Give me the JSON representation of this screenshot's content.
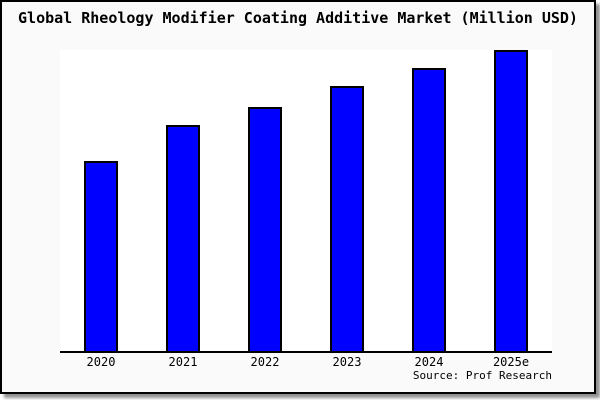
{
  "title": "Global Rheology Modifier Coating Additive Market (Million USD)",
  "source_label": "Source: Prof Research",
  "colors": {
    "bar_fill": "#0000FF",
    "bar_border": "#000000",
    "card_background": "#FAFAFA",
    "plot_background": "#FFFFFF",
    "axis": "#000000",
    "text": "#000000",
    "card_border": "#000000",
    "shadow": "#8F8F8F"
  },
  "chart_data": {
    "type": "bar",
    "title": "Global Rheology Modifier Coating Additive Market (Million USD)",
    "unit": "Million USD",
    "categories": [
      "2020",
      "2021",
      "2022",
      "2023",
      "2024",
      "2025e"
    ],
    "values": [
      63,
      75,
      81,
      88,
      94,
      100
    ],
    "value_scale": "relative index estimated from bar heights; tallest bar (2025e) = 100; y-axis has no tick labels in the image",
    "xlabel": "",
    "ylabel": "",
    "ylim": [
      0,
      100
    ],
    "grid": false,
    "legend": false,
    "source": "Source: Prof Research",
    "bar_color": "#0000FF"
  }
}
